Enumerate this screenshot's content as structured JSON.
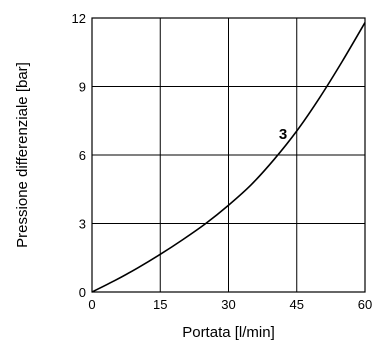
{
  "chart_data": {
    "type": "line",
    "title": "",
    "xlabel": "Portata [l/min]",
    "ylabel": "Pressione differenziale [bar]",
    "xlim": [
      0,
      60
    ],
    "ylim": [
      0,
      12
    ],
    "xticks": [
      "0",
      "15",
      "30",
      "45",
      "60"
    ],
    "yticks": [
      "0",
      "3",
      "6",
      "9",
      "12"
    ],
    "grid": true,
    "series": [
      {
        "name": "3",
        "x": [
          0,
          5,
          10,
          15,
          20,
          25,
          30,
          35,
          40,
          45,
          50,
          55,
          60
        ],
        "y": [
          0,
          0.5,
          1.05,
          1.65,
          2.3,
          3.0,
          3.8,
          4.7,
          5.8,
          7.05,
          8.5,
          10.1,
          11.8
        ]
      }
    ],
    "annotations": [
      {
        "text": "3",
        "x": 42,
        "y": 6.7,
        "bold": true
      }
    ]
  }
}
